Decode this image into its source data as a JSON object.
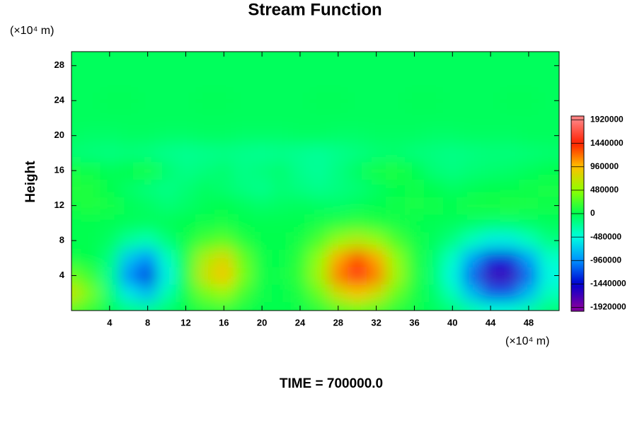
{
  "chart_data": {
    "type": "contour",
    "title": "Stream Function",
    "y_label": "Height",
    "y_unit": "(×10⁴ m)",
    "x_unit": "(×10⁴ m)",
    "footer": "TIME = 700000.0",
    "xlim": [
      0,
      51.2
    ],
    "ylim": [
      0,
      29.6
    ],
    "xticks": [
      4,
      8,
      12,
      16,
      20,
      24,
      28,
      32,
      36,
      40,
      44,
      48
    ],
    "yticks": [
      4,
      8,
      12,
      16,
      20,
      24,
      28
    ],
    "x": [
      0,
      2,
      4,
      6,
      8,
      10,
      12,
      14,
      16,
      18,
      20,
      22,
      24,
      26,
      28,
      30,
      32,
      34,
      36,
      38,
      40,
      42,
      44,
      46,
      48,
      50
    ],
    "y": [
      0,
      2,
      4,
      6,
      8,
      10,
      12,
      14,
      16,
      18,
      20,
      22,
      24,
      26,
      28
    ],
    "z": [
      [
        260000,
        140000,
        -30000,
        -160000,
        -210000,
        -90000,
        10000,
        90000,
        120000,
        50000,
        10000,
        10000,
        30000,
        110000,
        240000,
        310000,
        240000,
        110000,
        30000,
        -40000,
        -130000,
        -290000,
        -430000,
        -430000,
        -290000,
        -130000
      ],
      [
        700000,
        370000,
        -120000,
        -580000,
        -780000,
        -320000,
        40000,
        370000,
        500000,
        210000,
        30000,
        20000,
        100000,
        340000,
        730000,
        930000,
        730000,
        340000,
        80000,
        -90000,
        -350000,
        -770000,
        -1150000,
        -1150000,
        -770000,
        -350000
      ],
      [
        350000,
        180000,
        -210000,
        -970000,
        -1300000,
        -530000,
        90000,
        700000,
        930000,
        390000,
        50000,
        30000,
        160000,
        560000,
        1170000,
        1500000,
        1170000,
        560000,
        130000,
        -130000,
        -510000,
        -1120000,
        -1660000,
        -1660000,
        -1120000,
        -510000
      ],
      [
        40000,
        10000,
        -160000,
        -730000,
        -970000,
        -390000,
        80000,
        600000,
        800000,
        330000,
        40000,
        20000,
        140000,
        490000,
        1040000,
        1330000,
        1040000,
        490000,
        120000,
        -100000,
        -400000,
        -870000,
        -1300000,
        -1300000,
        -870000,
        -400000
      ],
      [
        0,
        0,
        -60000,
        -250000,
        -340000,
        -140000,
        30000,
        220000,
        300000,
        120000,
        20000,
        10000,
        70000,
        240000,
        500000,
        640000,
        500000,
        240000,
        60000,
        -40000,
        -170000,
        -370000,
        -550000,
        -550000,
        -370000,
        -170000
      ],
      [
        0,
        0,
        -10000,
        -40000,
        -50000,
        -20000,
        10000,
        40000,
        60000,
        20000,
        0,
        0,
        20000,
        60000,
        120000,
        160000,
        120000,
        60000,
        10000,
        -10000,
        -40000,
        -80000,
        -120000,
        -120000,
        -80000,
        -40000
      ],
      [
        80000,
        100000,
        60000,
        -20000,
        -60000,
        -120000,
        -80000,
        -20000,
        20000,
        -40000,
        -80000,
        -60000,
        -40000,
        -60000,
        -80000,
        -40000,
        0,
        40000,
        60000,
        40000,
        20000,
        60000,
        80000,
        100000,
        60000,
        40000
      ],
      [
        120000,
        100000,
        20000,
        -80000,
        -140000,
        -180000,
        -120000,
        -60000,
        -100000,
        -160000,
        -200000,
        -120000,
        -160000,
        -200000,
        -160000,
        -120000,
        -60000,
        20000,
        40000,
        0,
        -60000,
        -20000,
        0,
        20000,
        40000,
        60000
      ],
      [
        60000,
        40000,
        -20000,
        20000,
        60000,
        -100000,
        -180000,
        -140000,
        -100000,
        -180000,
        -140000,
        -100000,
        -200000,
        -240000,
        -160000,
        -60000,
        60000,
        100000,
        0,
        -120000,
        -160000,
        -120000,
        -100000,
        -80000,
        -40000,
        0
      ],
      [
        -120000,
        -140000,
        -160000,
        -140000,
        -160000,
        -200000,
        -220000,
        -200000,
        -180000,
        -200000,
        -220000,
        -200000,
        -220000,
        -240000,
        -200000,
        -160000,
        -120000,
        -100000,
        -140000,
        -160000,
        -180000,
        -160000,
        -140000,
        -140000,
        -120000,
        -100000
      ],
      [
        -60000,
        -80000,
        -80000,
        -60000,
        -60000,
        -80000,
        -80000,
        -60000,
        -60000,
        -80000,
        -80000,
        -80000,
        -60000,
        -60000,
        -80000,
        -80000,
        -60000,
        -60000,
        -60000,
        -80000,
        -80000,
        -60000,
        -60000,
        -60000,
        -40000,
        -40000
      ],
      [
        -40000,
        -40000,
        -40000,
        -40000,
        -40000,
        -40000,
        -40000,
        -40000,
        -40000,
        -40000,
        -40000,
        -40000,
        -40000,
        -40000,
        -40000,
        -40000,
        -40000,
        -40000,
        -40000,
        -40000,
        -40000,
        -40000,
        -40000,
        -40000,
        -40000,
        -40000
      ],
      [
        -40000,
        -40000,
        -20000,
        -20000,
        -40000,
        -40000,
        -40000,
        -20000,
        -20000,
        -40000,
        -40000,
        -40000,
        -40000,
        -20000,
        -20000,
        -40000,
        -40000,
        -40000,
        -20000,
        -20000,
        -40000,
        -40000,
        -40000,
        -20000,
        -20000,
        -40000
      ],
      [
        -40000,
        -40000,
        -40000,
        -40000,
        -40000,
        -40000,
        -40000,
        -40000,
        -40000,
        -40000,
        -40000,
        -40000,
        -40000,
        -40000,
        -40000,
        -40000,
        -40000,
        -40000,
        -40000,
        -40000,
        -40000,
        -40000,
        -40000,
        -40000,
        -40000,
        -40000
      ],
      [
        -40000,
        -40000,
        -40000,
        -40000,
        -40000,
        -40000,
        -40000,
        -40000,
        -40000,
        -40000,
        -40000,
        -40000,
        -40000,
        -40000,
        -40000,
        -40000,
        -40000,
        -40000,
        -40000,
        -40000,
        -40000,
        -40000,
        -40000,
        -40000,
        -40000,
        -40000
      ]
    ],
    "colorbar": {
      "zlim": [
        -2000000,
        2000000
      ],
      "ticks": [
        1920000,
        1440000,
        960000,
        480000,
        0,
        -480000,
        -960000,
        -1440000,
        -1920000
      ],
      "colors": [
        "#ff8080",
        "#ff2000",
        "#ffc000",
        "#90ff00",
        "#00ff50",
        "#00ffe0",
        "#0090ff",
        "#0000d0",
        "#8000a0"
      ]
    }
  }
}
